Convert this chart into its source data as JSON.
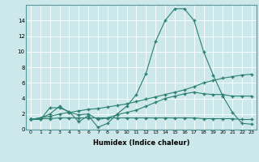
{
  "xlabel": "Humidex (Indice chaleur)",
  "x_values": [
    0,
    1,
    2,
    3,
    4,
    5,
    6,
    7,
    8,
    9,
    10,
    11,
    12,
    13,
    14,
    15,
    16,
    17,
    18,
    19,
    20,
    21,
    22,
    23
  ],
  "line1": [
    1.3,
    1.3,
    2.8,
    2.8,
    2.3,
    1.0,
    1.8,
    0.3,
    0.8,
    2.0,
    3.0,
    4.5,
    7.2,
    11.3,
    14.0,
    15.5,
    15.5,
    14.0,
    10.0,
    7.0,
    4.3,
    2.2,
    0.8,
    0.7
  ],
  "line2": [
    1.3,
    1.5,
    2.0,
    3.0,
    2.2,
    1.9,
    2.0,
    1.3,
    1.5,
    1.9,
    2.2,
    2.5,
    3.0,
    3.5,
    4.0,
    4.3,
    4.6,
    4.8,
    4.6,
    4.5,
    4.5,
    4.3,
    4.3,
    4.3
  ],
  "line3": [
    1.3,
    1.5,
    1.7,
    2.0,
    2.2,
    2.4,
    2.6,
    2.7,
    2.9,
    3.1,
    3.3,
    3.6,
    3.9,
    4.2,
    4.5,
    4.8,
    5.1,
    5.5,
    6.0,
    6.3,
    6.6,
    6.8,
    7.0,
    7.1
  ],
  "line4": [
    1.3,
    1.4,
    1.4,
    1.5,
    1.5,
    1.5,
    1.5,
    1.5,
    1.5,
    1.5,
    1.5,
    1.5,
    1.5,
    1.5,
    1.5,
    1.5,
    1.5,
    1.5,
    1.4,
    1.4,
    1.4,
    1.4,
    1.3,
    1.3
  ],
  "line_color": "#2a7f6f",
  "bg_color": "#cce8eb",
  "grid_color": "#b0d4d8",
  "ylim": [
    0,
    16
  ],
  "xlim": [
    -0.5,
    23.5
  ],
  "yticks": [
    0,
    2,
    4,
    6,
    8,
    10,
    12,
    14
  ],
  "xticks": [
    0,
    1,
    2,
    3,
    4,
    5,
    6,
    7,
    8,
    9,
    10,
    11,
    12,
    13,
    14,
    15,
    16,
    17,
    18,
    19,
    20,
    21,
    22,
    23
  ]
}
